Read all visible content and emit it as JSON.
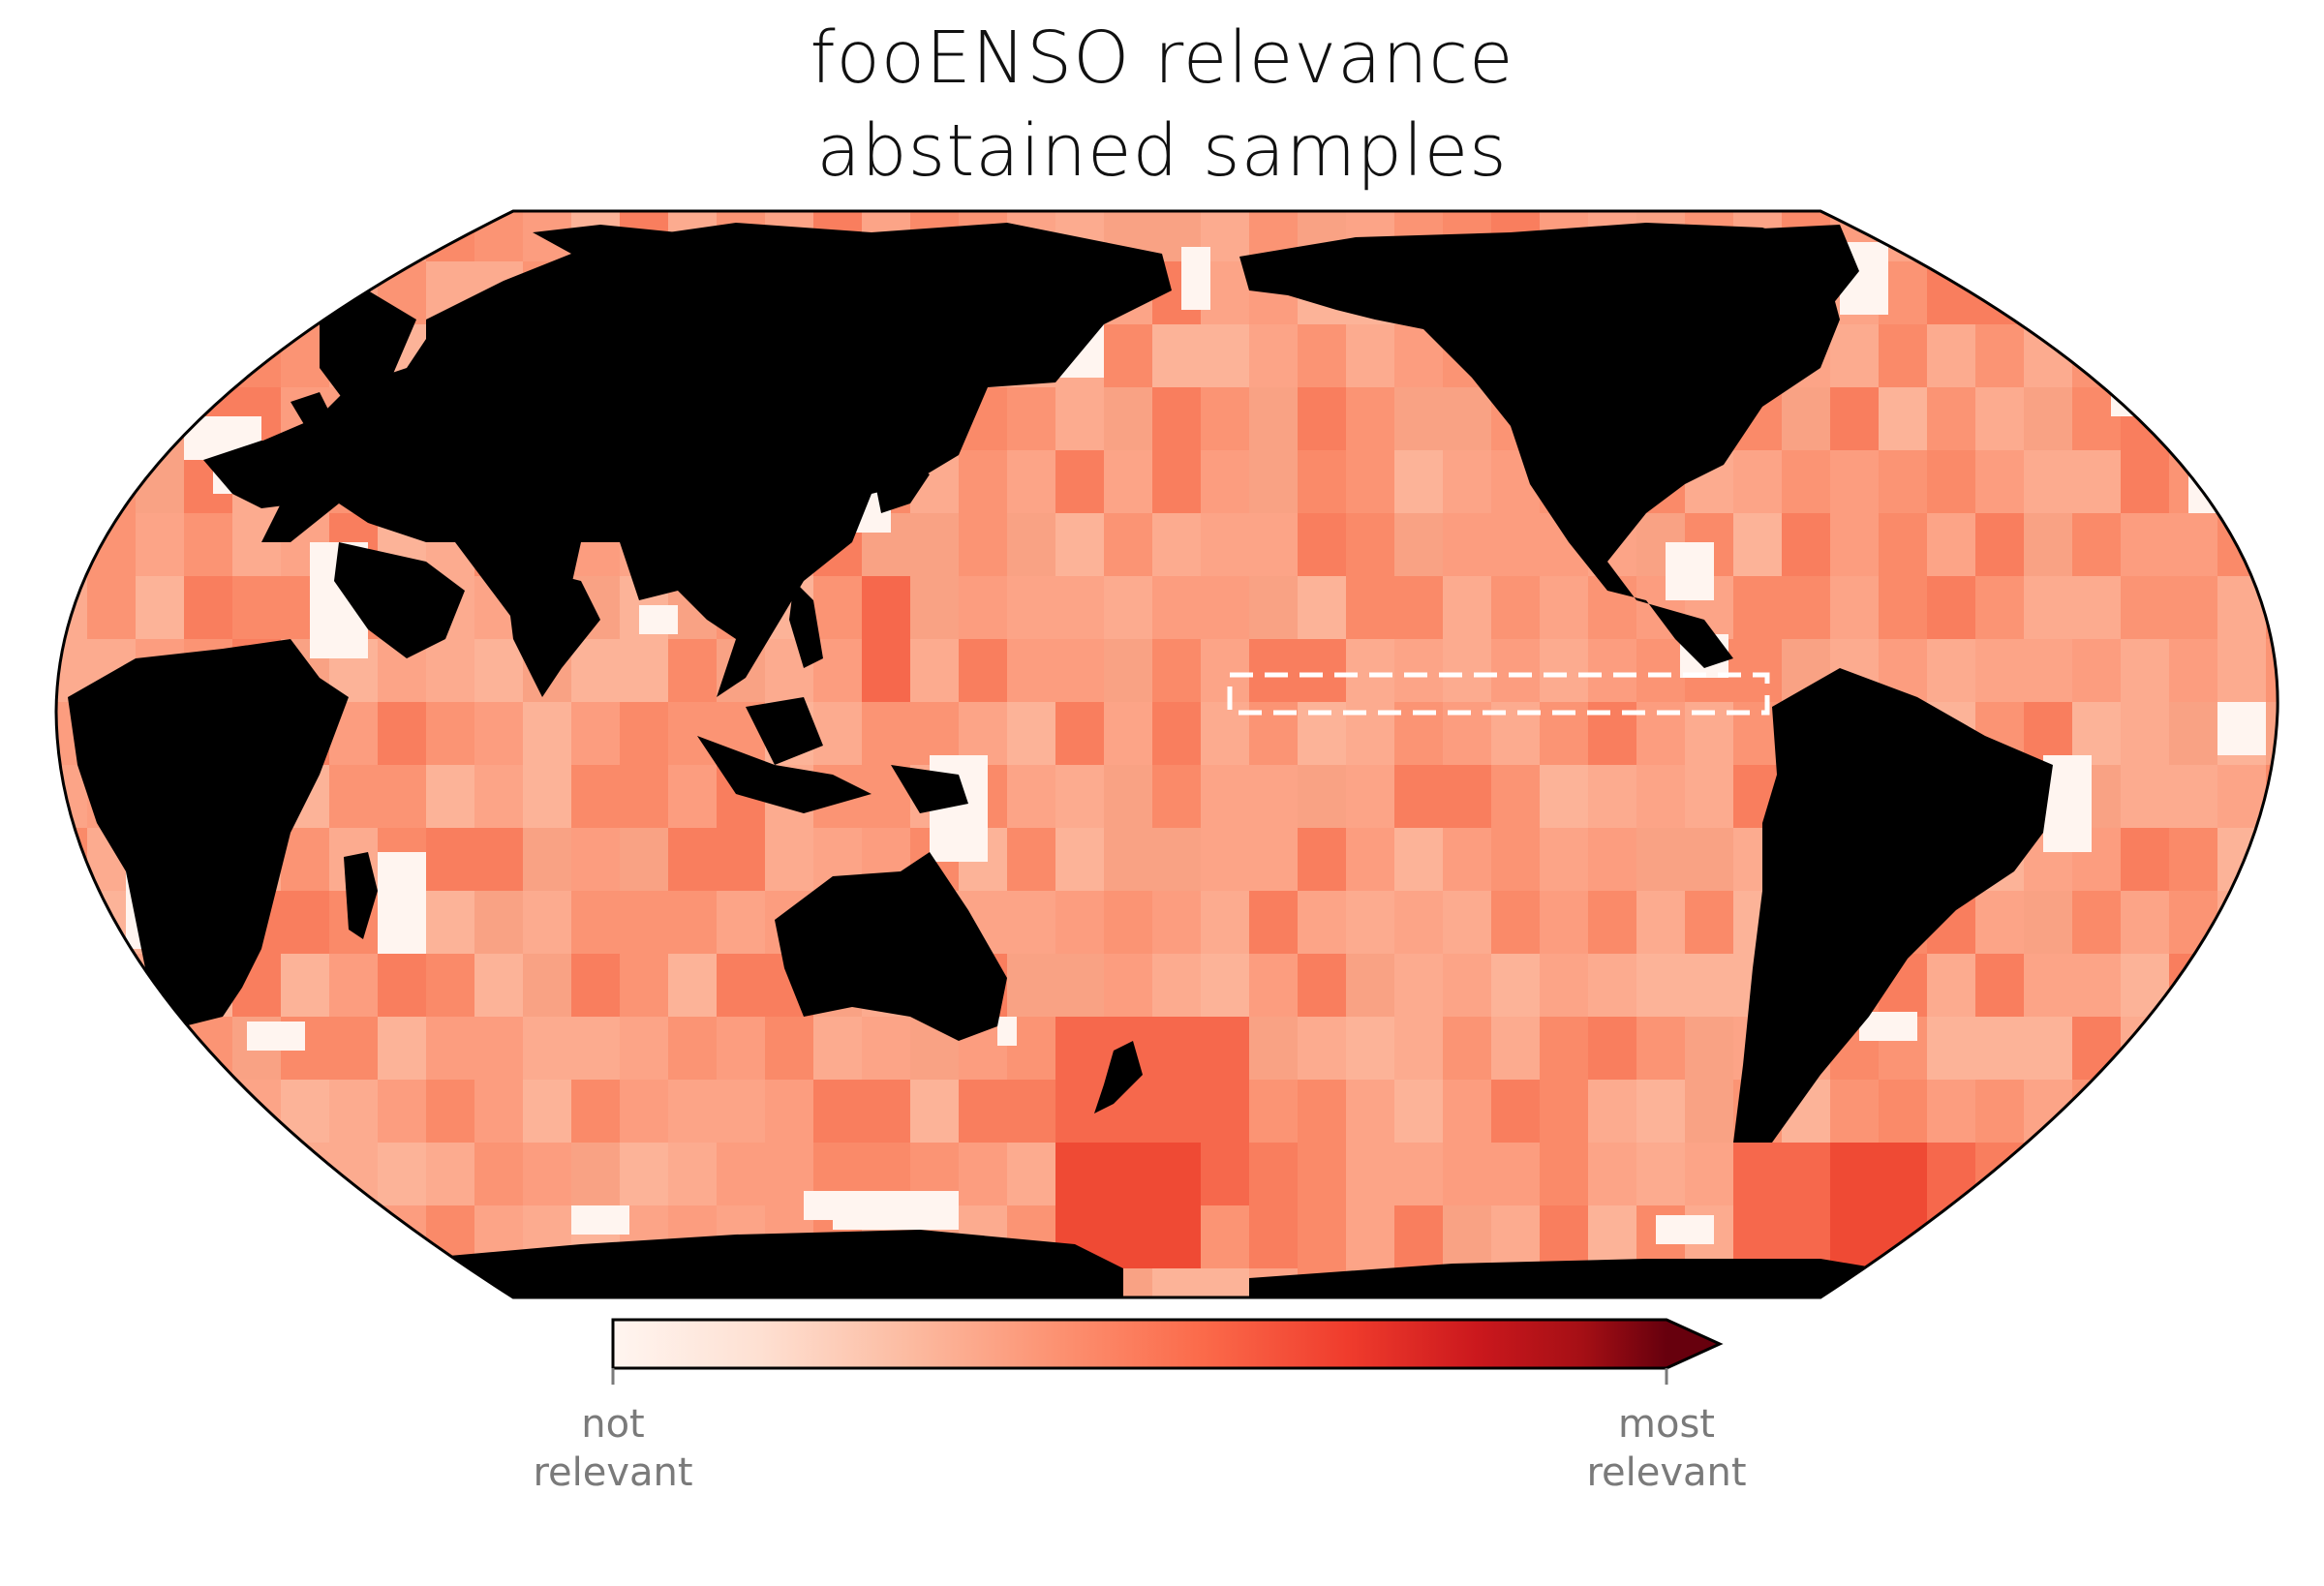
{
  "title": {
    "line1": "fooENSO relevance",
    "line2": "abstained samples"
  },
  "colorbar": {
    "colormap": "Reds",
    "colors": [
      "#fff5f0",
      "#fcbba1",
      "#fc9272",
      "#fb6a4a",
      "#ef3b2c",
      "#cb181d",
      "#a50f15",
      "#67000d"
    ],
    "extend": "max",
    "min_label": {
      "line1": "not",
      "line2": "relevant"
    },
    "max_label": {
      "line1": "most",
      "line2": "relevant"
    }
  },
  "map": {
    "projection": "Robinson-like, Pacific-centered",
    "land_color": "#000000",
    "ocean_base_color": "#fca487",
    "abstained_color": "#fff5f0",
    "region_box": {
      "style": "white dashed rectangle",
      "location": "equatorial central-eastern Pacific"
    }
  }
}
